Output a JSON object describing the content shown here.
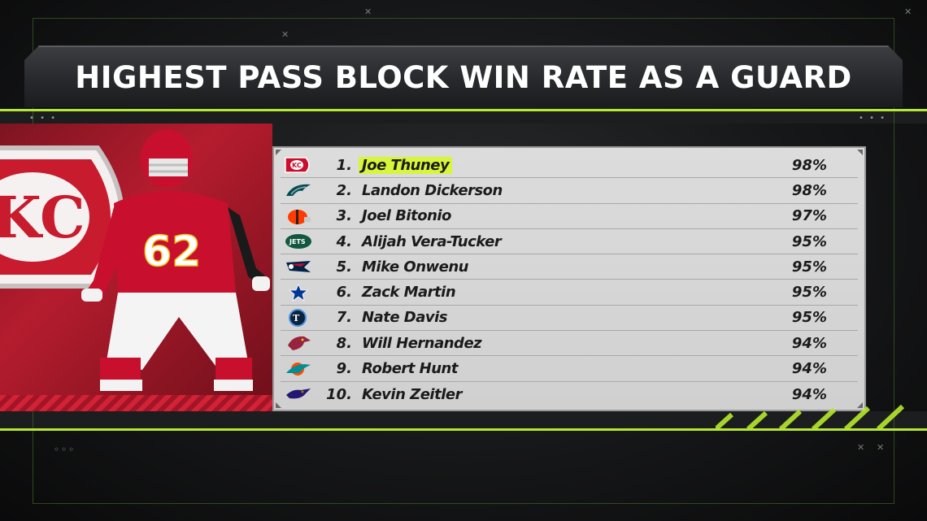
{
  "title": "HIGHEST PASS BLOCK WIN RATE AS A GUARD",
  "colors": {
    "accent": "#b6e82d",
    "highlight": "#d7f53b",
    "chiefs_red": "#b51c2e"
  },
  "featured_player": {
    "team_icon": "chiefs-arrowhead-logo",
    "jersey_number": "62"
  },
  "rankings": [
    {
      "rank": "1.",
      "name": "Joe Thuney",
      "pct": "98%",
      "team_icon": "chiefs-logo-icon",
      "highlight": true
    },
    {
      "rank": "2.",
      "name": "Landon Dickerson",
      "pct": "98%",
      "team_icon": "eagles-logo-icon",
      "highlight": false
    },
    {
      "rank": "3.",
      "name": "Joel Bitonio",
      "pct": "97%",
      "team_icon": "browns-logo-icon",
      "highlight": false
    },
    {
      "rank": "4.",
      "name": "Alijah Vera-Tucker",
      "pct": "95%",
      "team_icon": "jets-logo-icon",
      "highlight": false
    },
    {
      "rank": "5.",
      "name": "Mike Onwenu",
      "pct": "95%",
      "team_icon": "patriots-logo-icon",
      "highlight": false
    },
    {
      "rank": "6.",
      "name": "Zack Martin",
      "pct": "95%",
      "team_icon": "cowboys-logo-icon",
      "highlight": false
    },
    {
      "rank": "7.",
      "name": "Nate Davis",
      "pct": "95%",
      "team_icon": "titans-logo-icon",
      "highlight": false
    },
    {
      "rank": "8.",
      "name": "Will Hernandez",
      "pct": "94%",
      "team_icon": "cardinals-logo-icon",
      "highlight": false
    },
    {
      "rank": "9.",
      "name": "Robert Hunt",
      "pct": "94%",
      "team_icon": "dolphins-logo-icon",
      "highlight": false
    },
    {
      "rank": "10.",
      "name": "Kevin Zeitler",
      "pct": "94%",
      "team_icon": "ravens-logo-icon",
      "highlight": false
    }
  ]
}
